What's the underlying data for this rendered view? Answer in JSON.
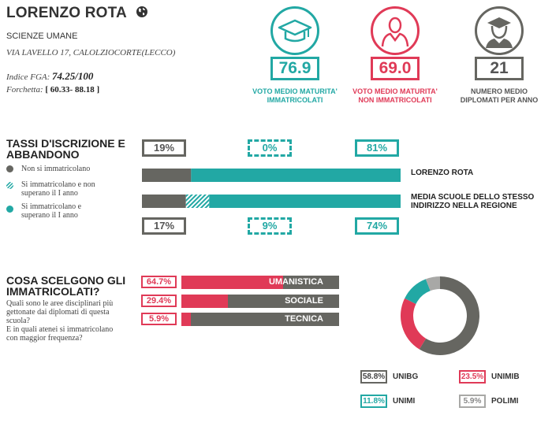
{
  "school": {
    "name": "LORENZO ROTA",
    "type": "SCIENZE UMANE",
    "address": "VIA LAVELLO 17, CALOLZIOCORTE(LECCO)",
    "fga_label": "Indice FGA:",
    "fga_value": "74.25/100",
    "range_label": "Forchetta:",
    "range_value": "[ 60.33- 88.18 ]"
  },
  "stats": [
    {
      "value": "76.9",
      "label_line1": "VOTO MEDIO MATURITA'",
      "label_line2": "IMMATRICOLATI",
      "color": "#22a8a4",
      "icon": "graduation-cap-icon"
    },
    {
      "value": "69.0",
      "label_line1": "VOTO MEDIO MATURITA'",
      "label_line2": "NON IMMATRICOLATI",
      "color": "#e03a57",
      "icon": "person-icon"
    },
    {
      "value": "21",
      "label_line1": "NUMERO MEDIO",
      "label_line2": "DIPLOMATI PER ANNO",
      "color": "#666661",
      "icon": "graduate-person-icon"
    }
  ],
  "enrollment": {
    "title_line1": "TASSI D'ISCRIZIONE E",
    "title_line2": "ABBANDONO",
    "legend": [
      {
        "text_line1": "Non si immatricolano",
        "text_line2": "",
        "color": "#666661"
      },
      {
        "text_line1": "Si immatricolano e non",
        "text_line2": "superano il I anno",
        "color": "#22a8a4"
      },
      {
        "text_line1": "Si immatricolano e",
        "text_line2": "superano il I anno",
        "color": "#22a8a4"
      }
    ],
    "top": {
      "not_enrolled": "19%",
      "dropout": "0%",
      "enrolled": "81%",
      "label": "LORENZO ROTA",
      "fractions": [
        0.19,
        0.0,
        0.81
      ]
    },
    "bottom": {
      "not_enrolled": "17%",
      "dropout": "9%",
      "enrolled": "74%",
      "label_line1": "MEDIA SCUOLE DELLO STESSO",
      "label_line2": "INDIRIZZO NELLA REGIONE",
      "fractions": [
        0.17,
        0.09,
        0.74
      ]
    }
  },
  "choices": {
    "title_line1": "COSA SCELGONO GLI",
    "title_line2": "IMMATRICOLATI?",
    "q1_line1": "Quali sono le aree disciplinari più",
    "q1_line2": "gettonate dai diplomati di questa",
    "q1_line3": "scuola?",
    "q2_line1": "E in quali atenei si immatricolano",
    "q2_line2": "con maggior frequenza?",
    "areas": [
      {
        "pct": "64.7%",
        "label": "UMANISTICA",
        "fraction": 0.647
      },
      {
        "pct": "29.4%",
        "label": "SOCIALE",
        "fraction": 0.294
      },
      {
        "pct": "5.9%",
        "label": "TECNICA",
        "fraction": 0.059
      }
    ]
  },
  "chart_data": {
    "type": "pie",
    "categories": [
      "UNIBG",
      "UNIMIB",
      "UNIMI",
      "POLIMI"
    ],
    "values": [
      58.8,
      23.5,
      11.8,
      5.9
    ],
    "labels": [
      "58.8%",
      "23.5%",
      "11.8%",
      "5.9%"
    ],
    "colors": [
      "#666661",
      "#e03a57",
      "#22a8a4",
      "#a8a8a6"
    ]
  },
  "colors": {
    "teal": "#22a8a4",
    "red": "#e03a57",
    "gray": "#666661",
    "lightgray": "#a8a8a6"
  }
}
